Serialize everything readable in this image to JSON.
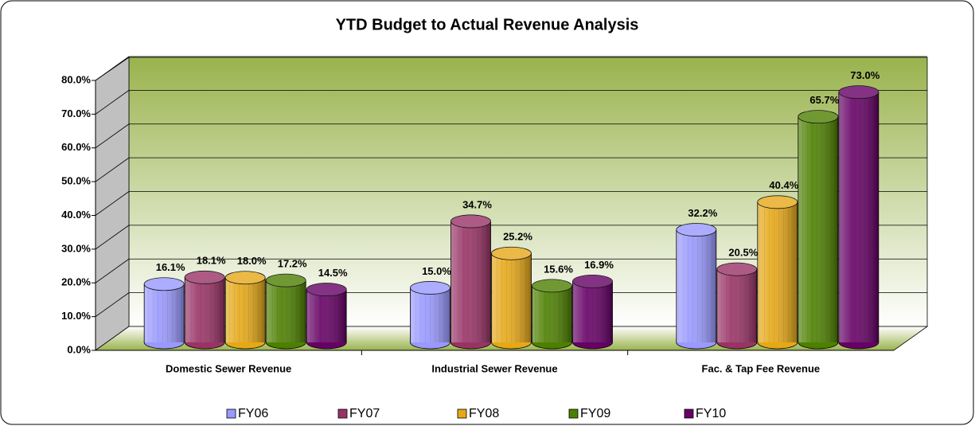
{
  "chart_data": {
    "type": "bar3d",
    "title": "YTD Budget to Actual Revenue Analysis",
    "categories": [
      "Domestic Sewer Revenue",
      "Industrial Sewer Revenue",
      "Fac. & Tap Fee Revenue"
    ],
    "series": [
      {
        "name": "FY06",
        "color": "#9999ff",
        "values": [
          16.1,
          15.0,
          32.2
        ],
        "value_labels": [
          "16.1%",
          "15.0%",
          "32.2%"
        ]
      },
      {
        "name": "FY07",
        "color": "#993366",
        "values": [
          18.1,
          34.7,
          20.5
        ],
        "value_labels": [
          "18.1%",
          "34.7%",
          "20.5%"
        ]
      },
      {
        "name": "FY08",
        "color": "#e6a817",
        "values": [
          18.0,
          25.2,
          40.4
        ],
        "value_labels": [
          "18.0%",
          "25.2%",
          "40.4%"
        ]
      },
      {
        "name": "FY09",
        "color": "#4d8000",
        "values": [
          17.2,
          15.6,
          65.7
        ],
        "value_labels": [
          "17.2%",
          "15.6%",
          "65.7%"
        ]
      },
      {
        "name": "FY10",
        "color": "#660066",
        "values": [
          14.5,
          16.9,
          73.0
        ],
        "value_labels": [
          "14.5%",
          "16.9%",
          "73.0%"
        ]
      }
    ],
    "ylim": [
      0,
      80
    ],
    "yticks": [
      {
        "value": 0,
        "label": "0.0%"
      },
      {
        "value": 10,
        "label": "10.0%"
      },
      {
        "value": 20,
        "label": "20.0%"
      },
      {
        "value": 30,
        "label": "30.0%"
      },
      {
        "value": 40,
        "label": "40.0%"
      },
      {
        "value": 50,
        "label": "50.0%"
      },
      {
        "value": 60,
        "label": "60.0%"
      },
      {
        "value": 70,
        "label": "70.0%"
      },
      {
        "value": 80,
        "label": "80.0%"
      }
    ],
    "grid": true,
    "legend": "bottom"
  }
}
